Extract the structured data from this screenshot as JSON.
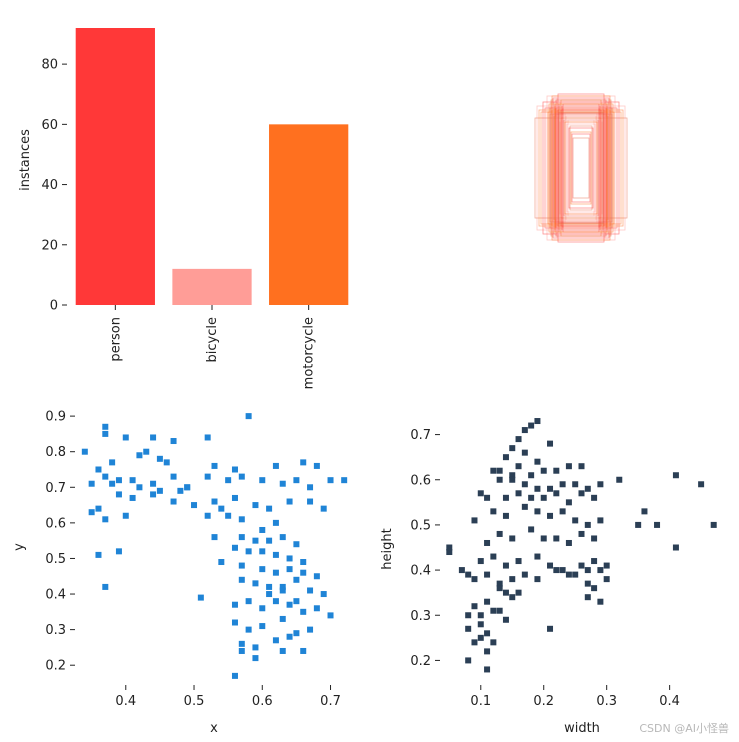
{
  "chart_data": [
    {
      "type": "bar",
      "categories": [
        "person",
        "bicycle",
        "motorcycle"
      ],
      "values": [
        92,
        12,
        60
      ],
      "colors": [
        "#ff3838",
        "#ff9d97",
        "#ff701f"
      ],
      "xlabel": "",
      "ylabel": "instances",
      "ylim": [
        0,
        92
      ],
      "yticks": [
        0,
        20,
        40,
        60,
        80
      ]
    },
    {
      "type": "scatter",
      "description": "overlaid bounding-box rectangles centered at the origin",
      "boxes": [
        [
          0.26,
          0.62
        ],
        [
          0.24,
          0.58
        ],
        [
          0.3,
          0.66
        ],
        [
          0.22,
          0.55
        ],
        [
          0.28,
          0.7
        ],
        [
          0.2,
          0.5
        ],
        [
          0.34,
          0.72
        ],
        [
          0.18,
          0.6
        ],
        [
          0.25,
          0.68
        ],
        [
          0.32,
          0.64
        ],
        [
          0.16,
          0.56
        ],
        [
          0.27,
          0.52
        ],
        [
          0.23,
          0.74
        ],
        [
          0.29,
          0.58
        ],
        [
          0.21,
          0.66
        ],
        [
          0.31,
          0.6
        ],
        [
          0.19,
          0.62
        ],
        [
          0.26,
          0.56
        ],
        [
          0.24,
          0.7
        ],
        [
          0.22,
          0.64
        ],
        [
          0.28,
          0.54
        ],
        [
          0.2,
          0.68
        ],
        [
          0.3,
          0.62
        ],
        [
          0.17,
          0.48
        ],
        [
          0.25,
          0.6
        ],
        [
          0.33,
          0.56
        ],
        [
          0.15,
          0.52
        ],
        [
          0.27,
          0.66
        ],
        [
          0.23,
          0.58
        ],
        [
          0.29,
          0.72
        ],
        [
          0.21,
          0.46
        ],
        [
          0.31,
          0.54
        ],
        [
          0.18,
          0.64
        ],
        [
          0.26,
          0.6
        ],
        [
          0.24,
          0.52
        ],
        [
          0.22,
          0.62
        ],
        [
          0.12,
          0.4
        ],
        [
          0.1,
          0.36
        ],
        [
          0.14,
          0.44
        ],
        [
          0.08,
          0.3
        ],
        [
          0.36,
          0.6
        ],
        [
          0.4,
          0.56
        ],
        [
          0.44,
          0.62
        ],
        [
          0.46,
          0.5
        ],
        [
          0.38,
          0.66
        ],
        [
          0.42,
          0.58
        ],
        [
          0.13,
          0.48
        ],
        [
          0.11,
          0.42
        ],
        [
          0.09,
          0.34
        ],
        [
          0.16,
          0.46
        ],
        [
          0.28,
          0.6
        ],
        [
          0.3,
          0.68
        ],
        [
          0.2,
          0.58
        ],
        [
          0.26,
          0.64
        ],
        [
          0.24,
          0.66
        ],
        [
          0.22,
          0.56
        ]
      ]
    },
    {
      "type": "heatmap",
      "xlabel": "x",
      "ylabel": "y",
      "xlim": [
        0.33,
        0.73
      ],
      "ylim": [
        0.15,
        0.92
      ],
      "xticks": [
        0.4,
        0.5,
        0.6,
        0.7
      ],
      "yticks": [
        0.2,
        0.3,
        0.4,
        0.5,
        0.6,
        0.7,
        0.8,
        0.9
      ],
      "x": [
        0.34,
        0.35,
        0.37,
        0.37,
        0.4,
        0.44,
        0.45,
        0.47,
        0.52,
        0.58,
        0.38,
        0.42,
        0.43,
        0.46,
        0.49,
        0.53,
        0.56,
        0.62,
        0.66,
        0.68,
        0.36,
        0.37,
        0.39,
        0.41,
        0.44,
        0.47,
        0.49,
        0.52,
        0.55,
        0.57,
        0.6,
        0.63,
        0.65,
        0.67,
        0.7,
        0.72,
        0.38,
        0.42,
        0.45,
        0.48,
        0.36,
        0.39,
        0.41,
        0.44,
        0.47,
        0.5,
        0.53,
        0.56,
        0.59,
        0.61,
        0.64,
        0.67,
        0.69,
        0.35,
        0.37,
        0.4,
        0.52,
        0.54,
        0.57,
        0.6,
        0.62,
        0.55,
        0.57,
        0.59,
        0.61,
        0.63,
        0.65,
        0.53,
        0.56,
        0.58,
        0.6,
        0.62,
        0.64,
        0.66,
        0.36,
        0.39,
        0.54,
        0.57,
        0.6,
        0.62,
        0.64,
        0.66,
        0.68,
        0.57,
        0.59,
        0.61,
        0.63,
        0.65,
        0.67,
        0.69,
        0.61,
        0.63,
        0.65,
        0.37,
        0.51,
        0.56,
        0.58,
        0.6,
        0.62,
        0.64,
        0.66,
        0.68,
        0.7,
        0.56,
        0.58,
        0.6,
        0.63,
        0.65,
        0.67,
        0.57,
        0.59,
        0.62,
        0.64,
        0.66,
        0.57,
        0.59,
        0.63,
        0.56
      ],
      "y": [
        0.8,
        0.71,
        0.87,
        0.85,
        0.84,
        0.84,
        0.78,
        0.83,
        0.84,
        0.9,
        0.77,
        0.79,
        0.8,
        0.77,
        0.7,
        0.76,
        0.75,
        0.76,
        0.77,
        0.76,
        0.75,
        0.73,
        0.72,
        0.72,
        0.71,
        0.73,
        0.7,
        0.73,
        0.72,
        0.73,
        0.72,
        0.71,
        0.72,
        0.7,
        0.72,
        0.72,
        0.71,
        0.7,
        0.69,
        0.69,
        0.64,
        0.68,
        0.67,
        0.68,
        0.66,
        0.65,
        0.66,
        0.67,
        0.65,
        0.64,
        0.66,
        0.66,
        0.64,
        0.63,
        0.61,
        0.62,
        0.62,
        0.64,
        0.61,
        0.58,
        0.6,
        0.62,
        0.56,
        0.55,
        0.55,
        0.56,
        0.54,
        0.56,
        0.53,
        0.52,
        0.52,
        0.51,
        0.5,
        0.49,
        0.51,
        0.52,
        0.49,
        0.48,
        0.47,
        0.46,
        0.47,
        0.46,
        0.45,
        0.44,
        0.43,
        0.42,
        0.42,
        0.44,
        0.41,
        0.4,
        0.4,
        0.41,
        0.38,
        0.42,
        0.39,
        0.37,
        0.38,
        0.36,
        0.38,
        0.37,
        0.35,
        0.36,
        0.34,
        0.32,
        0.3,
        0.31,
        0.33,
        0.29,
        0.3,
        0.26,
        0.25,
        0.27,
        0.28,
        0.24,
        0.24,
        0.22,
        0.24,
        0.17
      ]
    },
    {
      "type": "heatmap",
      "xlabel": "width",
      "ylabel": "height",
      "xlim": [
        0.04,
        0.48
      ],
      "ylim": [
        0.15,
        0.75
      ],
      "xticks": [
        0.1,
        0.2,
        0.3,
        0.4
      ],
      "yticks": [
        0.2,
        0.3,
        0.4,
        0.5,
        0.6,
        0.7
      ],
      "x": [
        0.19,
        0.17,
        0.18,
        0.16,
        0.15,
        0.21,
        0.14,
        0.17,
        0.19,
        0.16,
        0.12,
        0.13,
        0.15,
        0.18,
        0.2,
        0.22,
        0.24,
        0.26,
        0.13,
        0.15,
        0.17,
        0.19,
        0.21,
        0.23,
        0.25,
        0.27,
        0.29,
        0.1,
        0.11,
        0.14,
        0.16,
        0.18,
        0.2,
        0.22,
        0.24,
        0.26,
        0.28,
        0.32,
        0.36,
        0.41,
        0.45,
        0.09,
        0.12,
        0.14,
        0.17,
        0.19,
        0.21,
        0.23,
        0.25,
        0.27,
        0.29,
        0.35,
        0.38,
        0.47,
        0.05,
        0.11,
        0.13,
        0.15,
        0.18,
        0.2,
        0.22,
        0.24,
        0.26,
        0.28,
        0.08,
        0.1,
        0.12,
        0.14,
        0.16,
        0.19,
        0.21,
        0.23,
        0.25,
        0.27,
        0.3,
        0.41,
        0.05,
        0.07,
        0.09,
        0.11,
        0.13,
        0.15,
        0.17,
        0.19,
        0.22,
        0.24,
        0.26,
        0.28,
        0.29,
        0.13,
        0.14,
        0.15,
        0.16,
        0.27,
        0.28,
        0.3,
        0.09,
        0.11,
        0.13,
        0.27,
        0.29,
        0.08,
        0.1,
        0.12,
        0.14,
        0.21,
        0.08,
        0.1,
        0.11,
        0.09,
        0.1,
        0.12,
        0.11,
        0.08,
        0.11
      ],
      "y": [
        0.73,
        0.71,
        0.72,
        0.69,
        0.67,
        0.68,
        0.65,
        0.66,
        0.64,
        0.63,
        0.62,
        0.62,
        0.61,
        0.61,
        0.62,
        0.62,
        0.63,
        0.63,
        0.6,
        0.6,
        0.59,
        0.58,
        0.58,
        0.59,
        0.59,
        0.58,
        0.59,
        0.57,
        0.56,
        0.56,
        0.57,
        0.56,
        0.56,
        0.57,
        0.55,
        0.57,
        0.56,
        0.6,
        0.53,
        0.61,
        0.59,
        0.51,
        0.53,
        0.52,
        0.54,
        0.53,
        0.52,
        0.53,
        0.51,
        0.5,
        0.51,
        0.5,
        0.5,
        0.5,
        0.44,
        0.46,
        0.48,
        0.47,
        0.49,
        0.47,
        0.47,
        0.46,
        0.48,
        0.47,
        0.39,
        0.42,
        0.43,
        0.41,
        0.42,
        0.43,
        0.41,
        0.4,
        0.39,
        0.4,
        0.41,
        0.45,
        0.45,
        0.4,
        0.38,
        0.39,
        0.37,
        0.38,
        0.39,
        0.38,
        0.4,
        0.39,
        0.41,
        0.42,
        0.4,
        0.36,
        0.35,
        0.34,
        0.35,
        0.37,
        0.36,
        0.38,
        0.32,
        0.33,
        0.31,
        0.34,
        0.33,
        0.3,
        0.3,
        0.31,
        0.29,
        0.27,
        0.27,
        0.28,
        0.26,
        0.24,
        0.25,
        0.24,
        0.22,
        0.2,
        0.18
      ]
    }
  ],
  "watermark": "CSDN @AI小怪兽"
}
